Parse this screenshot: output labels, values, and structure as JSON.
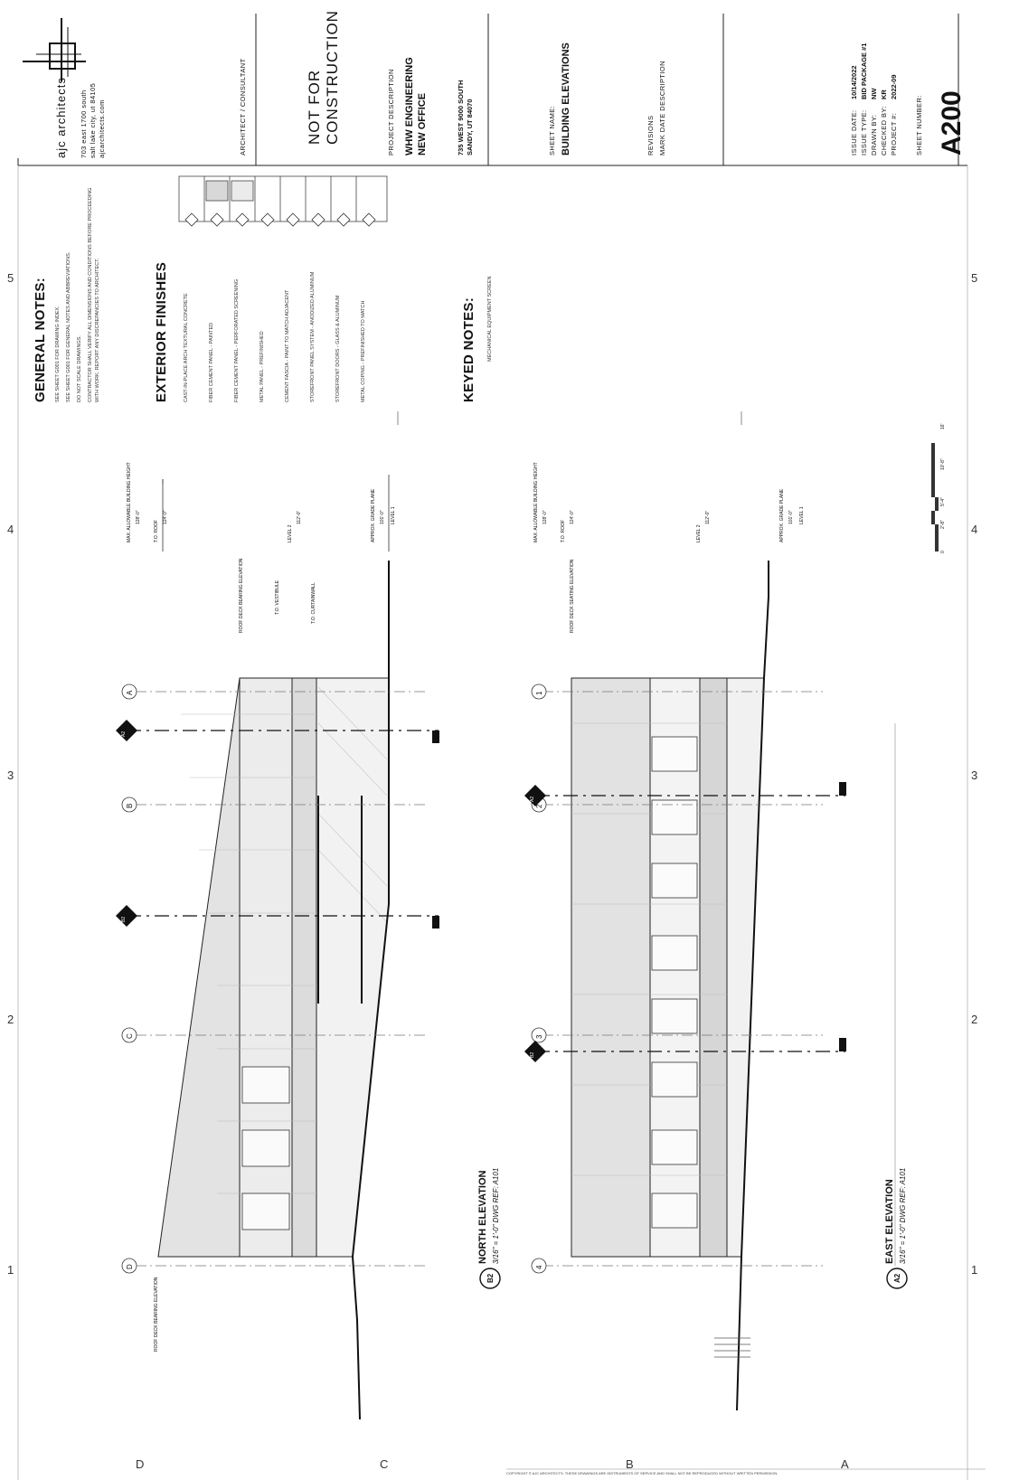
{
  "firm": {
    "name": "ajc architects",
    "address_line1": "703 east 1700 south",
    "address_line2": "salt lake city, ut 84105",
    "website": "ajcarchitects.com",
    "logo_icon": "ajc-logo-mark"
  },
  "titleblock": {
    "architect_consultant_label": "ARCHITECT / CONSULTANT",
    "stamp_line1": "NOT FOR",
    "stamp_line2": "CONSTRUCTION",
    "project_label": "PROJECT   DESCRIPTION",
    "project_name_line1": "WHW ENGINEERING",
    "project_name_line2": "NEW OFFICE",
    "project_address_line1": "735 WEST 9000 SOUTH",
    "project_address_line2": "SANDY, UT 84070",
    "sheet_name_label": "SHEET NAME:",
    "sheet_name": "BUILDING ELEVATIONS",
    "revisions_label": "REVISIONS",
    "revisions_columns": "MARK   DATE     DESCRIPTION",
    "issue_date_label": "ISSUE DATE:",
    "issue_date": "10/14/2022",
    "issue_type_label": "ISSUE TYPE:",
    "issue_type": "BID PACKAGE #1",
    "drawn_by_label": "DRAWN BY:",
    "drawn_by": "NW",
    "checked_by_label": "CHECKED BY:",
    "checked_by": "KR",
    "project_no_label": "PROJECT #:",
    "project_no": "2022-09",
    "sheet_number_label": "SHEET NUMBER:",
    "sheet_number": "A200"
  },
  "general_notes": {
    "header": "GENERAL NOTES:",
    "items": [
      "SEE SHEET G001 FOR DRAWING INDEX.",
      "SEE SHEET G001 FOR GENERAL NOTES AND ABBREVIATIONS.",
      "DO NOT SCALE DRAWINGS.",
      "CONTRACTOR SHALL VERIFY ALL DIMENSIONS AND CONDITIONS BEFORE PROCEEDING WITH WORK. REPORT ANY DISCREPANCIES TO ARCHITECT."
    ]
  },
  "exterior_finishes": {
    "header": "EXTERIOR FINISHES",
    "items": [
      {
        "tag": "1",
        "text": "CAST-IN-PLACE ARCH TEXTURAL CONCRETE"
      },
      {
        "tag": "2",
        "text": "FIBER CEMENT PANEL - PAINTED"
      },
      {
        "tag": "3",
        "text": "FIBER CEMENT PANEL - PERFORATED SCREENING"
      },
      {
        "tag": "4",
        "text": "METAL PANEL - PREFINISHED"
      },
      {
        "tag": "5",
        "text": "CEMENT FASCIA - PAINT TO MATCH ADJACENT"
      },
      {
        "tag": "6",
        "text": "STOREFRONT PANEL SYSTEM - ANODIZED ALUMINUM"
      },
      {
        "tag": "7",
        "text": "STOREFRONT DOORS - GLASS & ALUMINUM"
      },
      {
        "tag": "8",
        "text": "METAL COPING - PREFINISHED TO MATCH"
      }
    ]
  },
  "keyed_notes": {
    "header": "KEYED NOTES:",
    "items": [
      "MECHANICAL EQUIPMENT SCREEN"
    ]
  },
  "grid": {
    "sheet_columns": [
      "5",
      "4",
      "3",
      "2",
      "1"
    ],
    "sheet_rows": [
      "D",
      "C",
      "B",
      "A"
    ],
    "north_grids": [
      "A",
      "B",
      "C",
      "D"
    ],
    "east_grids": [
      "1",
      "2",
      "3",
      "4"
    ]
  },
  "views": {
    "north": {
      "tag": "B2",
      "title": "NORTH ELEVATION",
      "scale": "3/16\" = 1'-0\"   DWG REF: A101",
      "levels": [
        {
          "name": "MAX. ALLOWABLE BUILDING HEIGHT",
          "elev": "128'-0\""
        },
        {
          "name": "T.O. ROOF",
          "elev": "124'-0\""
        },
        {
          "name": "LEVEL 2",
          "elev": "112'-0\""
        },
        {
          "name": "APPROX. GRADE PLANE",
          "elev": "101'-0\""
        },
        {
          "name": "LEVEL 1",
          "elev": "100'-0\""
        }
      ],
      "notes": [
        "ROOF DECK BEARING ELEVATION",
        "T.O. VESTIBULE",
        "T.O. CURTAINWALL"
      ],
      "left_note": "ROOF DECK BEARING ELEVATION"
    },
    "east": {
      "tag": "A2",
      "title": "EAST ELEVATION",
      "scale": "3/16\" = 1'-0\"   DWG REF: A101",
      "levels": [
        {
          "name": "MAX. ALLOWABLE BUILDING HEIGHT",
          "elev": "128'-0\""
        },
        {
          "name": "T.O. ROOF",
          "elev": "124'-0\""
        },
        {
          "name": "LEVEL 2",
          "elev": "112'-0\""
        },
        {
          "name": "APPROX. GRADE PLANE",
          "elev": "101'-0\""
        },
        {
          "name": "LEVEL 1",
          "elev": "100'-0\""
        }
      ],
      "notes": [
        "ROOF DECK SEATING ELEVATION"
      ]
    }
  },
  "sections": [
    {
      "num": "A2",
      "sheet": "A300"
    },
    {
      "num": "B2",
      "sheet": "A300"
    },
    {
      "num": "A2",
      "sheet": "A300"
    },
    {
      "num": "B2",
      "sheet": "A300"
    }
  ],
  "scale_bar": {
    "labels": [
      "0",
      "2'-8\"",
      "5'-4\"",
      "10'-8\"",
      "16'"
    ]
  },
  "footer_note": "COPYRIGHT © AJC ARCHITECTS. THESE DRAWINGS ARE INSTRUMENTS OF SERVICE AND SHALL NOT BE REPRODUCED WITHOUT WRITTEN PERMISSION.",
  "colors": {
    "line": "#111111",
    "tone_light": "#e4e4e4",
    "tone_mid": "#d2d2d2",
    "glass": "#f4f4f4"
  }
}
